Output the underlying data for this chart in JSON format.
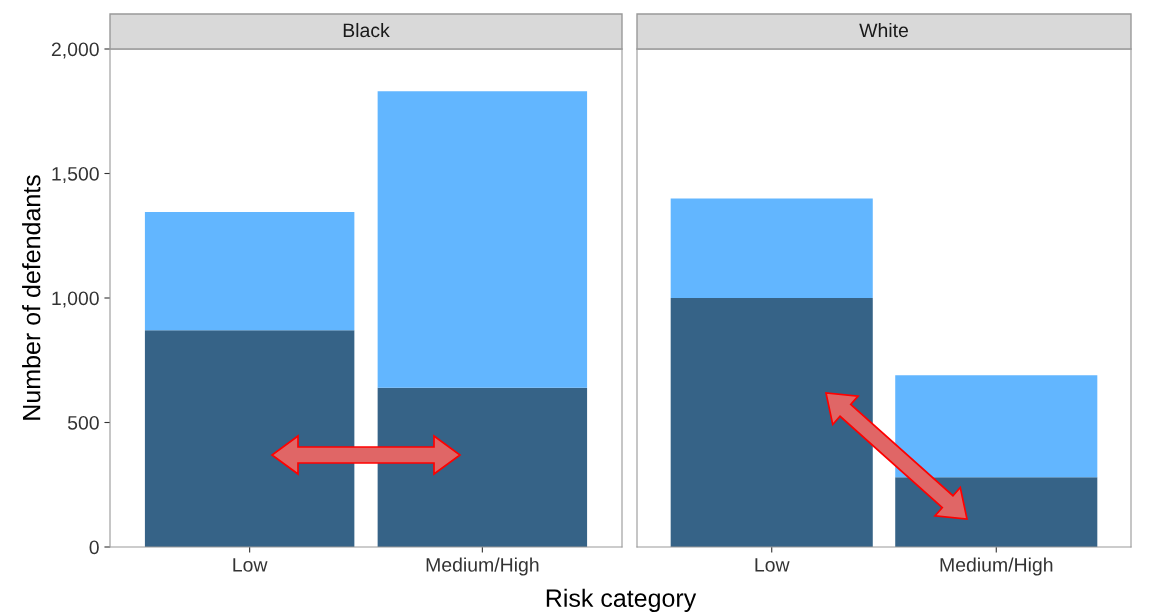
{
  "chart_data": [
    {
      "type": "bar",
      "title": "Black",
      "ylabel": "Number of defendants",
      "xlabel": "Risk category",
      "categories": [
        "Low",
        "Medium/High"
      ],
      "stacked": true,
      "ylim": [
        0,
        2000
      ],
      "yticks": [
        {
          "value": 0,
          "label": "0"
        },
        {
          "value": 500,
          "label": "500"
        },
        {
          "value": 1000,
          "label": "1,000"
        },
        {
          "value": 1500,
          "label": "1,500"
        },
        {
          "value": 2000,
          "label": "2,000"
        }
      ],
      "grid": false,
      "series": [
        {
          "color": "#366387",
          "values": [
            870,
            640
          ]
        },
        {
          "color": "#62b6ff",
          "values": [
            475,
            1190
          ]
        }
      ]
    },
    {
      "type": "bar",
      "title": "White",
      "categories": [
        "Low",
        "Medium/High"
      ],
      "stacked": true,
      "ylim": [
        0,
        2000
      ],
      "tick_labels": "x",
      "grid": false,
      "series": [
        {
          "color": "#366387",
          "values": [
            1000,
            280
          ]
        },
        {
          "color": "#62b6ff",
          "values": [
            400,
            410
          ]
        }
      ]
    }
  ]
}
